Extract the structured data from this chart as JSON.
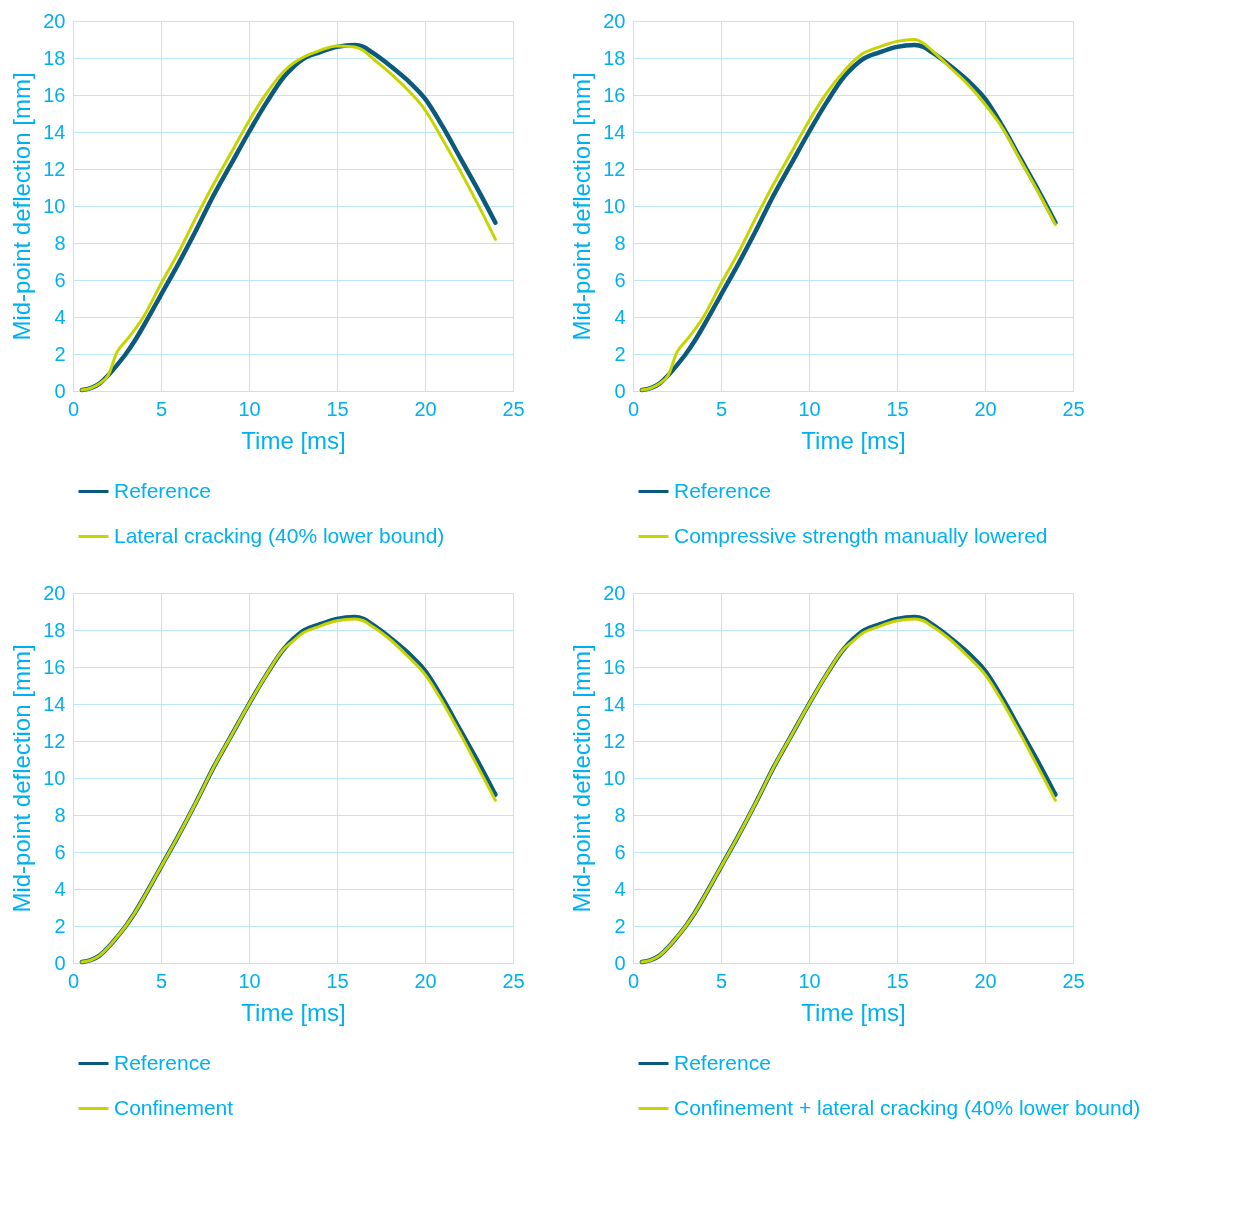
{
  "chart_data": [
    {
      "type": "line",
      "xlabel": "Time [ms]",
      "ylabel": "Mid-point deflection [mm]",
      "xlim": [
        0,
        25
      ],
      "xticks": [
        0,
        5,
        10,
        15,
        20,
        25
      ],
      "ylim": [
        0,
        20
      ],
      "yticks": [
        0,
        2,
        4,
        6,
        8,
        10,
        12,
        14,
        16,
        18,
        20
      ],
      "grid": true,
      "legend": "bottom",
      "marker": "none",
      "line_style": "solid",
      "x": [
        0.5,
        1,
        1.5,
        2,
        2.5,
        3,
        3.5,
        4,
        5,
        6,
        7,
        8,
        9,
        10,
        11,
        12,
        12.5,
        13,
        14,
        15,
        16,
        16.5,
        17,
        18,
        19,
        20,
        21,
        22,
        23,
        24
      ],
      "series": [
        {
          "name": "Reference",
          "color": "#0b5a7e",
          "values": [
            0.05,
            0.15,
            0.4,
            0.85,
            1.4,
            2.0,
            2.7,
            3.5,
            5.2,
            6.9,
            8.7,
            10.6,
            12.3,
            14.0,
            15.6,
            17.0,
            17.5,
            17.9,
            18.3,
            18.6,
            18.7,
            18.6,
            18.3,
            17.6,
            16.8,
            15.8,
            14.3,
            12.6,
            10.9,
            9.1
          ]
        },
        {
          "name": "Lateral cracking (40% lower bound)",
          "color": "#c8d400",
          "values": [
            0.05,
            0.15,
            0.4,
            0.85,
            2.1,
            2.7,
            3.3,
            4.0,
            5.8,
            7.5,
            9.4,
            11.2,
            12.9,
            14.6,
            16.1,
            17.3,
            17.7,
            18.0,
            18.4,
            18.65,
            18.6,
            18.4,
            18.0,
            17.2,
            16.3,
            15.2,
            13.6,
            11.9,
            10.1,
            8.2
          ]
        }
      ]
    },
    {
      "type": "line",
      "xlabel": "Time [ms]",
      "ylabel": "Mid-point deflection [mm]",
      "xlim": [
        0,
        25
      ],
      "xticks": [
        0,
        5,
        10,
        15,
        20,
        25
      ],
      "ylim": [
        0,
        20
      ],
      "yticks": [
        0,
        2,
        4,
        6,
        8,
        10,
        12,
        14,
        16,
        18,
        20
      ],
      "grid": true,
      "legend": "bottom",
      "marker": "none",
      "line_style": "solid",
      "x": [
        0.5,
        1,
        1.5,
        2,
        2.5,
        3,
        3.5,
        4,
        5,
        6,
        7,
        8,
        9,
        10,
        11,
        12,
        12.5,
        13,
        14,
        15,
        16,
        16.5,
        17,
        18,
        19,
        20,
        21,
        22,
        23,
        24
      ],
      "series": [
        {
          "name": "Reference",
          "color": "#0b5a7e",
          "values": [
            0.05,
            0.15,
            0.4,
            0.85,
            1.4,
            2.0,
            2.7,
            3.5,
            5.2,
            6.9,
            8.7,
            10.6,
            12.3,
            14.0,
            15.6,
            17.0,
            17.5,
            17.9,
            18.3,
            18.6,
            18.7,
            18.6,
            18.3,
            17.6,
            16.8,
            15.8,
            14.3,
            12.6,
            10.9,
            9.1
          ]
        },
        {
          "name": "Compressive strength manually lowered",
          "color": "#c8d400",
          "values": [
            0.05,
            0.15,
            0.4,
            0.85,
            2.1,
            2.7,
            3.3,
            4.0,
            5.8,
            7.5,
            9.4,
            11.2,
            12.9,
            14.6,
            16.1,
            17.3,
            17.8,
            18.2,
            18.6,
            18.9,
            19.0,
            18.8,
            18.4,
            17.5,
            16.6,
            15.5,
            14.2,
            12.5,
            10.8,
            9.0
          ]
        }
      ]
    },
    {
      "type": "line",
      "xlabel": "Time [ms]",
      "ylabel": "Mid-point deflection [mm]",
      "xlim": [
        0,
        25
      ],
      "xticks": [
        0,
        5,
        10,
        15,
        20,
        25
      ],
      "ylim": [
        0,
        20
      ],
      "yticks": [
        0,
        2,
        4,
        6,
        8,
        10,
        12,
        14,
        16,
        18,
        20
      ],
      "grid": true,
      "legend": "bottom",
      "marker": "none",
      "line_style": "solid",
      "x": [
        0.5,
        1,
        1.5,
        2,
        2.5,
        3,
        3.5,
        4,
        5,
        6,
        7,
        8,
        9,
        10,
        11,
        12,
        12.5,
        13,
        14,
        15,
        16,
        16.5,
        17,
        18,
        19,
        20,
        21,
        22,
        23,
        24
      ],
      "series": [
        {
          "name": "Reference",
          "color": "#0b5a7e",
          "values": [
            0.05,
            0.15,
            0.4,
            0.85,
            1.4,
            2.0,
            2.7,
            3.5,
            5.2,
            6.9,
            8.7,
            10.6,
            12.3,
            14.0,
            15.6,
            17.0,
            17.5,
            17.9,
            18.3,
            18.6,
            18.7,
            18.6,
            18.3,
            17.6,
            16.8,
            15.8,
            14.3,
            12.6,
            10.9,
            9.1
          ]
        },
        {
          "name": "Confinement",
          "color": "#c8d400",
          "values": [
            0.05,
            0.15,
            0.4,
            0.85,
            1.4,
            2.0,
            2.7,
            3.5,
            5.2,
            6.9,
            8.7,
            10.6,
            12.3,
            14.0,
            15.6,
            17.0,
            17.4,
            17.8,
            18.2,
            18.5,
            18.6,
            18.5,
            18.2,
            17.5,
            16.6,
            15.6,
            14.1,
            12.4,
            10.6,
            8.8
          ]
        }
      ]
    },
    {
      "type": "line",
      "xlabel": "Time [ms]",
      "ylabel": "Mid-point deflection [mm]",
      "xlim": [
        0,
        25
      ],
      "xticks": [
        0,
        5,
        10,
        15,
        20,
        25
      ],
      "ylim": [
        0,
        20
      ],
      "yticks": [
        0,
        2,
        4,
        6,
        8,
        10,
        12,
        14,
        16,
        18,
        20
      ],
      "grid": true,
      "legend": "bottom",
      "marker": "none",
      "line_style": "solid",
      "x": [
        0.5,
        1,
        1.5,
        2,
        2.5,
        3,
        3.5,
        4,
        5,
        6,
        7,
        8,
        9,
        10,
        11,
        12,
        12.5,
        13,
        14,
        15,
        16,
        16.5,
        17,
        18,
        19,
        20,
        21,
        22,
        23,
        24
      ],
      "series": [
        {
          "name": "Reference",
          "color": "#0b5a7e",
          "values": [
            0.05,
            0.15,
            0.4,
            0.85,
            1.4,
            2.0,
            2.7,
            3.5,
            5.2,
            6.9,
            8.7,
            10.6,
            12.3,
            14.0,
            15.6,
            17.0,
            17.5,
            17.9,
            18.3,
            18.6,
            18.7,
            18.6,
            18.3,
            17.6,
            16.8,
            15.8,
            14.3,
            12.6,
            10.9,
            9.1
          ]
        },
        {
          "name": "Confinement + lateral cracking (40% lower bound)",
          "color": "#c8d400",
          "values": [
            0.05,
            0.15,
            0.4,
            0.85,
            1.4,
            2.0,
            2.7,
            3.5,
            5.2,
            6.9,
            8.7,
            10.6,
            12.3,
            14.0,
            15.6,
            17.0,
            17.4,
            17.8,
            18.2,
            18.5,
            18.6,
            18.5,
            18.2,
            17.5,
            16.6,
            15.6,
            14.1,
            12.4,
            10.6,
            8.8
          ]
        }
      ]
    }
  ]
}
